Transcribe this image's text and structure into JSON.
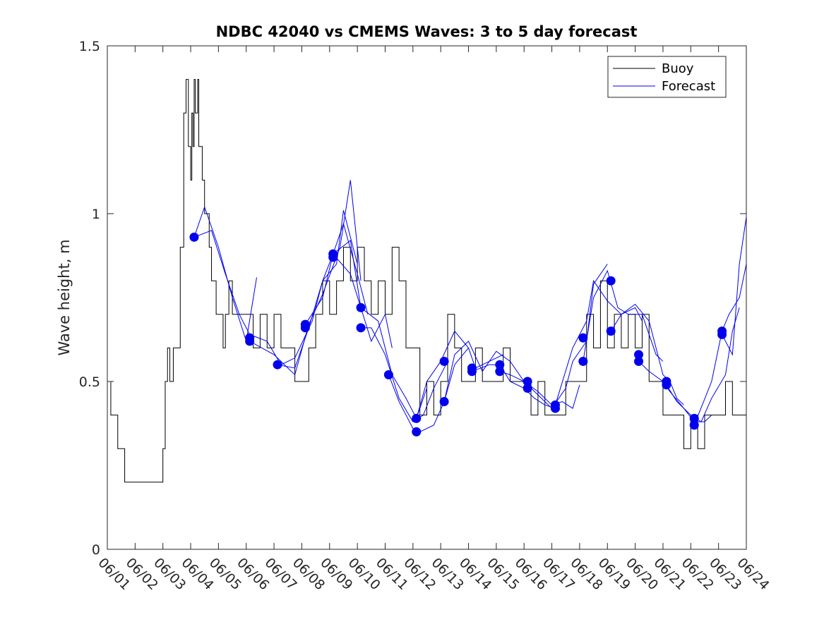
{
  "chart_data": {
    "type": "line",
    "title": "NDBC 42040 vs CMEMS Waves: 3 to 5 day forecast",
    "ylabel": "Wave height, m",
    "xlabel": "",
    "ylim": [
      0,
      1.5
    ],
    "yticks": [
      0,
      0.5,
      1,
      1.5
    ],
    "ytick_labels": [
      "0",
      "0.5",
      "1",
      "1.5"
    ],
    "xlim": [
      "06/01",
      "06/24"
    ],
    "xtick_labels": [
      "06/01",
      "06/02",
      "06/03",
      "06/04",
      "06/05",
      "06/06",
      "06/07",
      "06/08",
      "06/09",
      "06/10",
      "06/11",
      "06/12",
      "06/13",
      "06/14",
      "06/15",
      "06/16",
      "06/17",
      "06/18",
      "06/19",
      "06/20",
      "06/21",
      "06/22",
      "06/23",
      "06/24"
    ],
    "legend": {
      "placement": "top-right",
      "entries": [
        "Buoy",
        "Forecast"
      ]
    },
    "colors": {
      "buoy": "#000000",
      "forecast": "#0000ee",
      "markers": "#0000ee"
    },
    "grid": false,
    "buoy": {
      "name": "Buoy",
      "x": [
        "06/01 00:00",
        "06/01 03:00",
        "06/01 06:00",
        "06/01 09:00",
        "06/01 12:00",
        "06/01 15:00",
        "06/01 18:00",
        "06/02 00:00",
        "06/02 06:00",
        "06/02 12:00",
        "06/02 18:00",
        "06/02 20:00",
        "06/03 00:00",
        "06/03 02:00",
        "06/03 04:00",
        "06/03 06:00",
        "06/03 09:00",
        "06/03 12:00",
        "06/03 15:00",
        "06/03 18:00",
        "06/03 20:00",
        "06/03 22:00",
        "06/04 00:00",
        "06/04 01:00",
        "06/04 02:00",
        "06/04 03:00",
        "06/04 04:00",
        "06/04 05:00",
        "06/04 06:00",
        "06/04 07:00",
        "06/04 08:00",
        "06/04 10:00",
        "06/04 12:00",
        "06/04 14:00",
        "06/04 16:00",
        "06/04 18:00",
        "06/04 20:00",
        "06/04 22:00",
        "06/05 00:00",
        "06/05 02:00",
        "06/05 04:00",
        "06/05 06:00",
        "06/05 09:00",
        "06/05 12:00",
        "06/05 18:00",
        "06/06 00:00",
        "06/06 06:00",
        "06/06 12:00",
        "06/06 18:00",
        "06/07 00:00",
        "06/07 06:00",
        "06/07 12:00",
        "06/07 18:00",
        "06/08 00:00",
        "06/08 06:00",
        "06/08 12:00",
        "06/08 18:00",
        "06/09 00:00",
        "06/09 06:00",
        "06/09 12:00",
        "06/09 18:00",
        "06/10 00:00",
        "06/10 06:00",
        "06/10 12:00",
        "06/10 18:00",
        "06/11 00:00",
        "06/11 06:00",
        "06/11 12:00",
        "06/11 18:00",
        "06/12 00:00",
        "06/12 06:00",
        "06/12 12:00",
        "06/12 18:00",
        "06/13 00:00",
        "06/13 06:00",
        "06/13 12:00",
        "06/13 18:00",
        "06/14 00:00",
        "06/14 06:00",
        "06/14 12:00",
        "06/14 18:00",
        "06/15 00:00",
        "06/15 06:00",
        "06/15 12:00",
        "06/15 18:00",
        "06/16 00:00",
        "06/16 06:00",
        "06/16 12:00",
        "06/16 18:00",
        "06/17 00:00",
        "06/17 06:00",
        "06/17 12:00",
        "06/17 18:00",
        "06/18 00:00",
        "06/18 06:00",
        "06/18 12:00",
        "06/18 18:00",
        "06/19 00:00",
        "06/19 06:00",
        "06/19 12:00",
        "06/19 18:00",
        "06/20 00:00",
        "06/20 06:00",
        "06/20 12:00",
        "06/20 18:00",
        "06/21 00:00",
        "06/21 06:00",
        "06/21 12:00",
        "06/21 18:00",
        "06/22 00:00",
        "06/22 06:00",
        "06/22 12:00",
        "06/22 18:00",
        "06/23 00:00",
        "06/23 06:00",
        "06/23 12:00",
        "06/23 18:00",
        "06/24 00:00"
      ],
      "y": [
        0.5,
        0.4,
        0.4,
        0.3,
        0.3,
        0.2,
        0.2,
        0.2,
        0.2,
        0.2,
        0.2,
        0.2,
        0.3,
        0.5,
        0.6,
        0.5,
        0.6,
        0.6,
        0.9,
        1.3,
        1.4,
        1.2,
        1.1,
        1.3,
        1.2,
        1.4,
        1.3,
        1.3,
        1.4,
        1.2,
        1.2,
        1.1,
        1.0,
        1.0,
        0.9,
        0.8,
        0.8,
        0.7,
        0.7,
        0.7,
        0.6,
        0.7,
        0.8,
        0.7,
        0.7,
        0.7,
        0.6,
        0.7,
        0.6,
        0.7,
        0.6,
        0.6,
        0.5,
        0.5,
        0.6,
        0.7,
        0.8,
        0.7,
        0.8,
        0.9,
        0.8,
        0.9,
        0.8,
        0.7,
        0.8,
        0.7,
        0.9,
        0.8,
        0.6,
        0.6,
        0.4,
        0.5,
        0.4,
        0.5,
        0.7,
        0.6,
        0.5,
        0.5,
        0.6,
        0.5,
        0.5,
        0.5,
        0.6,
        0.5,
        0.5,
        0.5,
        0.4,
        0.5,
        0.4,
        0.4,
        0.4,
        0.5,
        0.5,
        0.5,
        0.7,
        0.6,
        0.8,
        0.6,
        0.7,
        0.6,
        0.7,
        0.6,
        0.7,
        0.5,
        0.5,
        0.4,
        0.4,
        0.4,
        0.3,
        0.4,
        0.3,
        0.4,
        0.4,
        0.4,
        0.5,
        0.4,
        0.4,
        0.4
      ]
    },
    "forecast_runs": [
      {
        "x": [
          "06/04 03:00",
          "06/04 12:00",
          "06/05 00:00",
          "06/05 12:00",
          "06/06 00:00",
          "06/06 09:00"
        ],
        "y": [
          0.93,
          1.02,
          0.9,
          0.75,
          0.62,
          0.81
        ]
      },
      {
        "x": [
          "06/04 03:00",
          "06/04 18:00",
          "06/05 06:00",
          "06/05 18:00",
          "06/06 03:00"
        ],
        "y": [
          0.93,
          0.95,
          0.82,
          0.7,
          0.64
        ]
      },
      {
        "x": [
          "06/06 03:00",
          "06/06 18:00",
          "06/07 06:00",
          "06/07 18:00",
          "06/08 09:00",
          "06/08 18:00",
          "06/09 06:00",
          "06/09 12:00",
          "06/10 00:00"
        ],
        "y": [
          0.64,
          0.62,
          0.55,
          0.57,
          0.68,
          0.8,
          0.85,
          1.01,
          0.85
        ]
      },
      {
        "x": [
          "06/06 03:00",
          "06/07 00:00",
          "06/07 18:00",
          "06/08 06:00",
          "06/08 18:00",
          "06/09 09:00",
          "06/09 18:00",
          "06/10 03:00"
        ],
        "y": [
          0.62,
          0.58,
          0.52,
          0.67,
          0.76,
          0.9,
          1.1,
          0.8
        ]
      },
      {
        "x": [
          "06/07 03:00",
          "06/07 18:00",
          "06/08 06:00",
          "06/08 18:00",
          "06/09 03:00",
          "06/09 12:00",
          "06/10 00:00",
          "06/10 09:00"
        ],
        "y": [
          0.55,
          0.54,
          0.66,
          0.8,
          0.88,
          0.97,
          0.82,
          0.7
        ]
      },
      {
        "x": [
          "06/08 03:00",
          "06/08 18:00",
          "06/09 03:00",
          "06/09 18:00",
          "06/10 03:00",
          "06/10 12:00",
          "06/11 00:00",
          "06/11 06:00"
        ],
        "y": [
          0.67,
          0.75,
          0.88,
          0.92,
          0.72,
          0.62,
          0.7,
          0.6
        ]
      },
      {
        "x": [
          "06/09 03:00",
          "06/09 18:00",
          "06/10 03:00",
          "06/10 18:00",
          "06/11 06:00",
          "06/11 18:00",
          "06/12 03:00",
          "06/12 12:00"
        ],
        "y": [
          0.88,
          0.82,
          0.72,
          0.68,
          0.52,
          0.45,
          0.39,
          0.48
        ]
      },
      {
        "x": [
          "06/10 03:00",
          "06/10 12:00",
          "06/11 00:00",
          "06/11 12:00",
          "06/12 00:00",
          "06/12 09:00",
          "06/12 18:00",
          "06/13 06:00"
        ],
        "y": [
          0.66,
          0.66,
          0.58,
          0.45,
          0.38,
          0.4,
          0.48,
          0.56
        ]
      },
      {
        "x": [
          "06/11 03:00",
          "06/11 12:00",
          "06/12 00:00",
          "06/12 06:00",
          "06/12 18:00",
          "06/13 03:00",
          "06/13 12:00",
          "06/14 00:00"
        ],
        "y": [
          0.52,
          0.44,
          0.36,
          0.35,
          0.37,
          0.44,
          0.55,
          0.6
        ]
      },
      {
        "x": [
          "06/12 03:00",
          "06/12 12:00",
          "06/13 00:00",
          "06/13 12:00",
          "06/14 00:00",
          "06/14 06:00",
          "06/14 18:00",
          "06/15 06:00"
        ],
        "y": [
          0.39,
          0.5,
          0.56,
          0.65,
          0.6,
          0.54,
          0.56,
          0.58
        ]
      },
      {
        "x": [
          "06/13 03:00",
          "06/13 12:00",
          "06/14 00:00",
          "06/14 12:00",
          "06/15 00:00",
          "06/15 12:00",
          "06/16 00:00",
          "06/16 06:00"
        ],
        "y": [
          0.44,
          0.58,
          0.62,
          0.53,
          0.59,
          0.56,
          0.5,
          0.5
        ]
      },
      {
        "x": [
          "06/14 03:00",
          "06/14 18:00",
          "06/15 03:00",
          "06/15 12:00",
          "06/16 00:00",
          "06/16 09:00",
          "06/16 18:00",
          "06/17 03:00"
        ],
        "y": [
          0.53,
          0.55,
          0.55,
          0.5,
          0.48,
          0.45,
          0.43,
          0.42
        ]
      },
      {
        "x": [
          "06/15 03:00",
          "06/15 12:00",
          "06/16 00:00",
          "06/16 12:00",
          "06/17 00:00",
          "06/17 09:00",
          "06/17 18:00",
          "06/18 00:00"
        ],
        "y": [
          0.53,
          0.52,
          0.5,
          0.47,
          0.43,
          0.44,
          0.42,
          0.49
        ]
      },
      {
        "x": [
          "06/16 03:00",
          "06/16 12:00",
          "06/17 00:00",
          "06/17 12:00",
          "06/17 18:00",
          "06/18 06:00",
          "06/18 12:00",
          "06/19 00:00"
        ],
        "y": [
          0.49,
          0.46,
          0.42,
          0.48,
          0.56,
          0.62,
          0.79,
          0.85
        ]
      },
      {
        "x": [
          "06/17 03:00",
          "06/17 18:00",
          "06/18 06:00",
          "06/18 12:00",
          "06/19 00:00",
          "06/19 12:00",
          "06/20 00:00",
          "06/20 06:00"
        ],
        "y": [
          0.43,
          0.6,
          0.68,
          0.8,
          0.74,
          0.7,
          0.72,
          0.68
        ]
      },
      {
        "x": [
          "06/18 03:00",
          "06/18 12:00",
          "06/19 00:00",
          "06/19 09:00",
          "06/19 18:00",
          "06/20 06:00",
          "06/20 18:00",
          "06/21 00:00"
        ],
        "y": [
          0.56,
          0.75,
          0.83,
          0.72,
          0.7,
          0.7,
          0.58,
          0.56
        ]
      },
      {
        "x": [
          "06/19 03:00",
          "06/19 12:00",
          "06/20 00:00",
          "06/20 12:00",
          "06/21 00:00",
          "06/21 06:00",
          "06/21 12:00",
          "06/21 18:00"
        ],
        "y": [
          0.65,
          0.7,
          0.73,
          0.68,
          0.52,
          0.5,
          0.45,
          0.43
        ]
      },
      {
        "x": [
          "06/20 03:00",
          "06/20 12:00",
          "06/21 00:00",
          "06/21 06:00",
          "06/21 18:00",
          "06/22 03:00",
          "06/22 12:00",
          "06/22 18:00"
        ],
        "y": [
          0.56,
          0.53,
          0.5,
          0.47,
          0.42,
          0.38,
          0.38,
          0.4
        ]
      },
      {
        "x": [
          "06/21 03:00",
          "06/21 12:00",
          "06/22 00:00",
          "06/22 09:00",
          "06/22 18:00",
          "06/23 06:00",
          "06/23 12:00",
          "06/23 18:00"
        ],
        "y": [
          0.49,
          0.44,
          0.4,
          0.38,
          0.45,
          0.52,
          0.65,
          0.72
        ]
      },
      {
        "x": [
          "06/22 03:00",
          "06/22 18:00",
          "06/23 03:00",
          "06/23 09:00",
          "06/23 18:00",
          "06/24 00:00"
        ],
        "y": [
          0.37,
          0.5,
          0.65,
          0.7,
          0.75,
          0.85
        ]
      },
      {
        "x": [
          "06/23 03:00",
          "06/23 12:00",
          "06/23 18:00",
          "06/24 00:00"
        ],
        "y": [
          0.64,
          0.58,
          0.85,
          0.99
        ]
      }
    ],
    "markers": {
      "x": [
        "06/04 03:00",
        "06/06 03:00",
        "06/06 03:00",
        "06/07 03:00",
        "06/08 03:00",
        "06/08 03:00",
        "06/09 03:00",
        "06/09 03:00",
        "06/10 03:00",
        "06/10 03:00",
        "06/11 03:00",
        "06/12 03:00",
        "06/12 03:00",
        "06/13 03:00",
        "06/13 03:00",
        "06/14 03:00",
        "06/14 03:00",
        "06/15 03:00",
        "06/15 03:00",
        "06/16 03:00",
        "06/16 03:00",
        "06/17 03:00",
        "06/17 03:00",
        "06/18 03:00",
        "06/18 03:00",
        "06/19 03:00",
        "06/19 03:00",
        "06/20 03:00",
        "06/20 03:00",
        "06/21 03:00",
        "06/21 03:00",
        "06/22 03:00",
        "06/22 03:00",
        "06/23 03:00",
        "06/23 03:00"
      ],
      "y": [
        0.93,
        0.63,
        0.62,
        0.55,
        0.67,
        0.66,
        0.88,
        0.87,
        0.72,
        0.66,
        0.52,
        0.39,
        0.35,
        0.56,
        0.44,
        0.54,
        0.53,
        0.55,
        0.53,
        0.5,
        0.48,
        0.43,
        0.42,
        0.63,
        0.56,
        0.8,
        0.65,
        0.58,
        0.56,
        0.5,
        0.49,
        0.39,
        0.37,
        0.65,
        0.64
      ]
    }
  }
}
